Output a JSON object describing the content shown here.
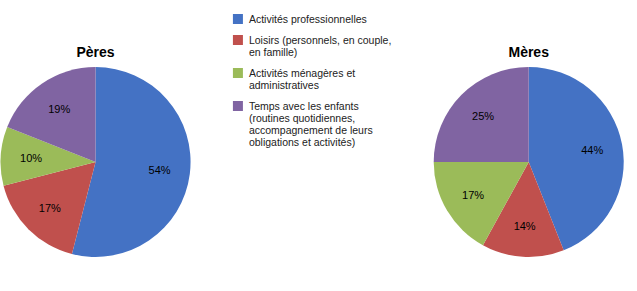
{
  "chart_data": {
    "type": "pie",
    "categories": [
      "Activités professionnelles",
      "Loisirs (personnels, en couple,\nen famille)",
      "Activités ménagères et\nadministratives",
      "Temps avec les enfants\n(routines quotidiennes,\naccompagnement de leurs\nobligations et activités)"
    ],
    "colors": [
      "#4472C4",
      "#C0504D",
      "#9BBB59",
      "#8064A2"
    ],
    "series": [
      {
        "name": "Pères",
        "values": [
          54,
          17,
          10,
          19
        ],
        "value_labels": [
          "54%",
          "17%",
          "10%",
          "19%"
        ]
      },
      {
        "name": "Mères",
        "values": [
          44,
          14,
          17,
          25
        ],
        "value_labels": [
          "44%",
          "14%",
          "17%",
          "25%"
        ]
      }
    ],
    "data_labels": true,
    "legend": "top"
  }
}
